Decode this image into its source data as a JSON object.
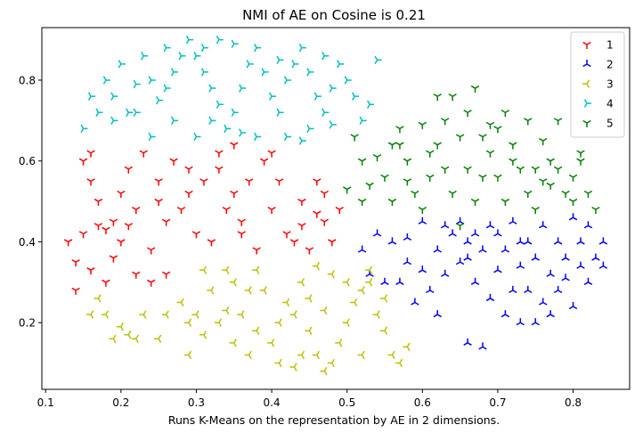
{
  "chart_data": {
    "type": "scatter",
    "title": "NMI of AE on Cosine is 0.21",
    "xlabel": "Runs K-Means on the representation by AE in 2 dimensions.",
    "ylabel": "",
    "xlim": [
      0.095,
      0.875
    ],
    "ylim": [
      0.035,
      0.93
    ],
    "xticks": [
      "0.1",
      "0.2",
      "0.3",
      "0.4",
      "0.5",
      "0.6",
      "0.7",
      "0.8"
    ],
    "yticks": [
      "0.2",
      "0.4",
      "0.6",
      "0.8"
    ],
    "grid": false,
    "legend_position": "top-right",
    "series": [
      {
        "name": "1",
        "color": "#ff0000",
        "marker": "tri-down",
        "points": [
          [
            0.13,
            0.4
          ],
          [
            0.14,
            0.35
          ],
          [
            0.15,
            0.42
          ],
          [
            0.16,
            0.55
          ],
          [
            0.16,
            0.62
          ],
          [
            0.15,
            0.6
          ],
          [
            0.17,
            0.5
          ],
          [
            0.18,
            0.43
          ],
          [
            0.19,
            0.45
          ],
          [
            0.2,
            0.52
          ],
          [
            0.21,
            0.58
          ],
          [
            0.23,
            0.62
          ],
          [
            0.22,
            0.48
          ],
          [
            0.2,
            0.4
          ],
          [
            0.18,
            0.3
          ],
          [
            0.22,
            0.32
          ],
          [
            0.24,
            0.38
          ],
          [
            0.26,
            0.45
          ],
          [
            0.25,
            0.55
          ],
          [
            0.27,
            0.6
          ],
          [
            0.29,
            0.58
          ],
          [
            0.31,
            0.55
          ],
          [
            0.33,
            0.62
          ],
          [
            0.28,
            0.48
          ],
          [
            0.3,
            0.42
          ],
          [
            0.32,
            0.4
          ],
          [
            0.34,
            0.48
          ],
          [
            0.36,
            0.45
          ],
          [
            0.35,
            0.52
          ],
          [
            0.37,
            0.55
          ],
          [
            0.39,
            0.6
          ],
          [
            0.41,
            0.55
          ],
          [
            0.4,
            0.48
          ],
          [
            0.42,
            0.42
          ],
          [
            0.44,
            0.5
          ],
          [
            0.46,
            0.55
          ],
          [
            0.47,
            0.45
          ],
          [
            0.45,
            0.38
          ],
          [
            0.43,
            0.4
          ],
          [
            0.38,
            0.38
          ],
          [
            0.36,
            0.42
          ],
          [
            0.26,
            0.32
          ],
          [
            0.24,
            0.3
          ],
          [
            0.14,
            0.28
          ],
          [
            0.16,
            0.33
          ],
          [
            0.19,
            0.36
          ],
          [
            0.17,
            0.44
          ],
          [
            0.21,
            0.44
          ],
          [
            0.25,
            0.5
          ],
          [
            0.29,
            0.52
          ],
          [
            0.33,
            0.58
          ],
          [
            0.35,
            0.64
          ],
          [
            0.4,
            0.62
          ],
          [
            0.46,
            0.47
          ],
          [
            0.48,
            0.4
          ],
          [
            0.49,
            0.48
          ],
          [
            0.47,
            0.52
          ],
          [
            0.44,
            0.44
          ]
        ]
      },
      {
        "name": "2",
        "color": "#0000ff",
        "marker": "tri-up",
        "points": [
          [
            0.52,
            0.38
          ],
          [
            0.54,
            0.42
          ],
          [
            0.56,
            0.4
          ],
          [
            0.58,
            0.35
          ],
          [
            0.57,
            0.3
          ],
          [
            0.55,
            0.3
          ],
          [
            0.59,
            0.25
          ],
          [
            0.61,
            0.28
          ],
          [
            0.63,
            0.32
          ],
          [
            0.62,
            0.38
          ],
          [
            0.64,
            0.42
          ],
          [
            0.66,
            0.4
          ],
          [
            0.65,
            0.35
          ],
          [
            0.67,
            0.3
          ],
          [
            0.69,
            0.26
          ],
          [
            0.71,
            0.22
          ],
          [
            0.73,
            0.2
          ],
          [
            0.72,
            0.28
          ],
          [
            0.7,
            0.33
          ],
          [
            0.68,
            0.38
          ],
          [
            0.7,
            0.42
          ],
          [
            0.72,
            0.45
          ],
          [
            0.74,
            0.4
          ],
          [
            0.76,
            0.44
          ],
          [
            0.75,
            0.36
          ],
          [
            0.77,
            0.32
          ],
          [
            0.78,
            0.28
          ],
          [
            0.8,
            0.24
          ],
          [
            0.79,
            0.36
          ],
          [
            0.81,
            0.4
          ],
          [
            0.82,
            0.44
          ],
          [
            0.8,
            0.46
          ],
          [
            0.78,
            0.4
          ],
          [
            0.83,
            0.36
          ],
          [
            0.84,
            0.4
          ],
          [
            0.82,
            0.3
          ],
          [
            0.76,
            0.25
          ],
          [
            0.74,
            0.28
          ],
          [
            0.73,
            0.34
          ],
          [
            0.71,
            0.38
          ],
          [
            0.69,
            0.44
          ],
          [
            0.67,
            0.42
          ],
          [
            0.65,
            0.45
          ],
          [
            0.63,
            0.44
          ],
          [
            0.6,
            0.45
          ],
          [
            0.58,
            0.41
          ],
          [
            0.62,
            0.22
          ],
          [
            0.66,
            0.15
          ],
          [
            0.68,
            0.14
          ],
          [
            0.75,
            0.2
          ],
          [
            0.77,
            0.22
          ],
          [
            0.84,
            0.34
          ],
          [
            0.53,
            0.32
          ],
          [
            0.6,
            0.33
          ],
          [
            0.79,
            0.31
          ],
          [
            0.81,
            0.34
          ],
          [
            0.73,
            0.4
          ],
          [
            0.66,
            0.36
          ]
        ]
      },
      {
        "name": "3",
        "color": "#bfbf00",
        "marker": "tri-left",
        "points": [
          [
            0.16,
            0.22
          ],
          [
            0.18,
            0.22
          ],
          [
            0.2,
            0.19
          ],
          [
            0.19,
            0.16
          ],
          [
            0.21,
            0.17
          ],
          [
            0.23,
            0.22
          ],
          [
            0.25,
            0.16
          ],
          [
            0.28,
            0.25
          ],
          [
            0.29,
            0.2
          ],
          [
            0.3,
            0.22
          ],
          [
            0.31,
            0.17
          ],
          [
            0.33,
            0.2
          ],
          [
            0.34,
            0.23
          ],
          [
            0.32,
            0.28
          ],
          [
            0.35,
            0.3
          ],
          [
            0.37,
            0.28
          ],
          [
            0.36,
            0.22
          ],
          [
            0.38,
            0.18
          ],
          [
            0.37,
            0.12
          ],
          [
            0.4,
            0.15
          ],
          [
            0.41,
            0.2
          ],
          [
            0.42,
            0.25
          ],
          [
            0.44,
            0.3
          ],
          [
            0.43,
            0.22
          ],
          [
            0.45,
            0.18
          ],
          [
            0.46,
            0.12
          ],
          [
            0.47,
            0.08
          ],
          [
            0.48,
            0.1
          ],
          [
            0.49,
            0.15
          ],
          [
            0.5,
            0.2
          ],
          [
            0.51,
            0.25
          ],
          [
            0.52,
            0.28
          ],
          [
            0.5,
            0.3
          ],
          [
            0.48,
            0.32
          ],
          [
            0.46,
            0.34
          ],
          [
            0.53,
            0.33
          ],
          [
            0.54,
            0.22
          ],
          [
            0.55,
            0.18
          ],
          [
            0.56,
            0.12
          ],
          [
            0.57,
            0.1
          ],
          [
            0.58,
            0.14
          ],
          [
            0.55,
            0.26
          ],
          [
            0.53,
            0.3
          ],
          [
            0.41,
            0.1
          ],
          [
            0.39,
            0.28
          ],
          [
            0.31,
            0.33
          ],
          [
            0.34,
            0.33
          ],
          [
            0.44,
            0.12
          ],
          [
            0.26,
            0.22
          ],
          [
            0.22,
            0.16
          ],
          [
            0.17,
            0.26
          ],
          [
            0.47,
            0.23
          ],
          [
            0.45,
            0.26
          ],
          [
            0.38,
            0.33
          ],
          [
            0.52,
            0.12
          ],
          [
            0.43,
            0.09
          ],
          [
            0.35,
            0.15
          ],
          [
            0.29,
            0.12
          ]
        ]
      },
      {
        "name": "4",
        "color": "#00bfbf",
        "marker": "tri-right",
        "points": [
          [
            0.15,
            0.68
          ],
          [
            0.16,
            0.76
          ],
          [
            0.17,
            0.72
          ],
          [
            0.18,
            0.8
          ],
          [
            0.19,
            0.7
          ],
          [
            0.2,
            0.84
          ],
          [
            0.21,
            0.72
          ],
          [
            0.22,
            0.79
          ],
          [
            0.23,
            0.86
          ],
          [
            0.24,
            0.8
          ],
          [
            0.25,
            0.75
          ],
          [
            0.26,
            0.88
          ],
          [
            0.27,
            0.82
          ],
          [
            0.28,
            0.86
          ],
          [
            0.29,
            0.9
          ],
          [
            0.3,
            0.86
          ],
          [
            0.31,
            0.82
          ],
          [
            0.32,
            0.78
          ],
          [
            0.33,
            0.74
          ],
          [
            0.34,
            0.68
          ],
          [
            0.35,
            0.72
          ],
          [
            0.36,
            0.78
          ],
          [
            0.37,
            0.84
          ],
          [
            0.38,
            0.88
          ],
          [
            0.39,
            0.82
          ],
          [
            0.4,
            0.76
          ],
          [
            0.41,
            0.72
          ],
          [
            0.42,
            0.8
          ],
          [
            0.43,
            0.84
          ],
          [
            0.44,
            0.88
          ],
          [
            0.45,
            0.82
          ],
          [
            0.46,
            0.76
          ],
          [
            0.47,
            0.72
          ],
          [
            0.48,
            0.78
          ],
          [
            0.49,
            0.84
          ],
          [
            0.5,
            0.8
          ],
          [
            0.51,
            0.76
          ],
          [
            0.52,
            0.7
          ],
          [
            0.53,
            0.74
          ],
          [
            0.54,
            0.85
          ],
          [
            0.45,
            0.68
          ],
          [
            0.44,
            0.65
          ],
          [
            0.38,
            0.66
          ],
          [
            0.36,
            0.67
          ],
          [
            0.32,
            0.7
          ],
          [
            0.3,
            0.66
          ],
          [
            0.27,
            0.7
          ],
          [
            0.24,
            0.66
          ],
          [
            0.22,
            0.72
          ],
          [
            0.33,
            0.9
          ],
          [
            0.35,
            0.89
          ],
          [
            0.31,
            0.88
          ],
          [
            0.41,
            0.85
          ],
          [
            0.47,
            0.86
          ],
          [
            0.48,
            0.69
          ],
          [
            0.42,
            0.66
          ],
          [
            0.26,
            0.78
          ],
          [
            0.19,
            0.76
          ]
        ]
      },
      {
        "name": "5",
        "color": "#008000",
        "marker": "tri-down",
        "points": [
          [
            0.51,
            0.66
          ],
          [
            0.52,
            0.6
          ],
          [
            0.53,
            0.54
          ],
          [
            0.55,
            0.56
          ],
          [
            0.56,
            0.64
          ],
          [
            0.57,
            0.68
          ],
          [
            0.58,
            0.6
          ],
          [
            0.59,
            0.52
          ],
          [
            0.6,
            0.48
          ],
          [
            0.61,
            0.56
          ],
          [
            0.62,
            0.64
          ],
          [
            0.63,
            0.7
          ],
          [
            0.64,
            0.76
          ],
          [
            0.65,
            0.66
          ],
          [
            0.66,
            0.58
          ],
          [
            0.67,
            0.5
          ],
          [
            0.68,
            0.56
          ],
          [
            0.69,
            0.62
          ],
          [
            0.7,
            0.68
          ],
          [
            0.71,
            0.72
          ],
          [
            0.72,
            0.64
          ],
          [
            0.73,
            0.58
          ],
          [
            0.74,
            0.52
          ],
          [
            0.75,
            0.48
          ],
          [
            0.76,
            0.55
          ],
          [
            0.77,
            0.6
          ],
          [
            0.78,
            0.58
          ],
          [
            0.79,
            0.52
          ],
          [
            0.8,
            0.56
          ],
          [
            0.81,
            0.6
          ],
          [
            0.82,
            0.52
          ],
          [
            0.83,
            0.48
          ],
          [
            0.78,
            0.7
          ],
          [
            0.76,
            0.65
          ],
          [
            0.74,
            0.7
          ],
          [
            0.72,
            0.6
          ],
          [
            0.7,
            0.56
          ],
          [
            0.68,
            0.66
          ],
          [
            0.66,
            0.72
          ],
          [
            0.62,
            0.76
          ],
          [
            0.6,
            0.69
          ],
          [
            0.58,
            0.55
          ],
          [
            0.56,
            0.5
          ],
          [
            0.54,
            0.61
          ],
          [
            0.52,
            0.5
          ],
          [
            0.5,
            0.53
          ],
          [
            0.64,
            0.52
          ],
          [
            0.65,
            0.44
          ],
          [
            0.71,
            0.5
          ],
          [
            0.75,
            0.58
          ],
          [
            0.77,
            0.54
          ],
          [
            0.8,
            0.5
          ],
          [
            0.81,
            0.62
          ],
          [
            0.69,
            0.69
          ],
          [
            0.67,
            0.78
          ],
          [
            0.63,
            0.58
          ],
          [
            0.57,
            0.64
          ],
          [
            0.61,
            0.62
          ]
        ]
      }
    ]
  }
}
